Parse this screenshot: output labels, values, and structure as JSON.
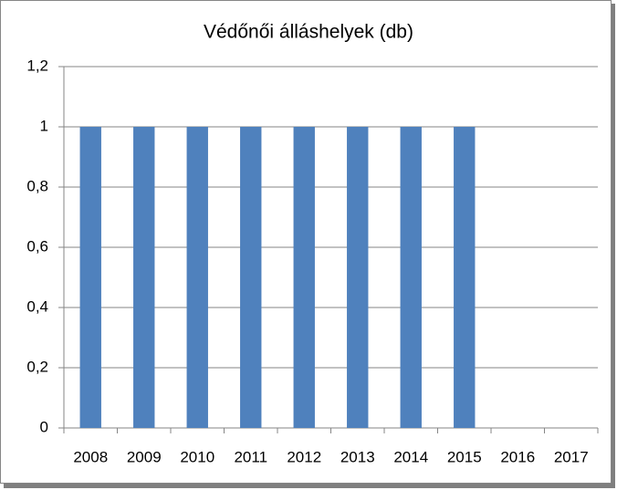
{
  "chart_data": {
    "type": "bar",
    "title": "Védőnői álláshelyek (db)",
    "categories": [
      "2008",
      "2009",
      "2010",
      "2011",
      "2012",
      "2013",
      "2014",
      "2015",
      "2016",
      "2017"
    ],
    "values": [
      1,
      1,
      1,
      1,
      1,
      1,
      1,
      1,
      0,
      0
    ],
    "color": "#4f81bd",
    "ylim": [
      0,
      1.2
    ],
    "yticks": [
      0,
      {
        "value": 0.2,
        "label": "0,2"
      },
      {
        "value": 0.4,
        "label": "0,4"
      },
      {
        "value": 0.6,
        "label": "0,6"
      },
      {
        "value": 0.8,
        "label": "0,8"
      },
      1,
      {
        "value": 1.2,
        "label": "1,2"
      }
    ],
    "grid": true
  }
}
